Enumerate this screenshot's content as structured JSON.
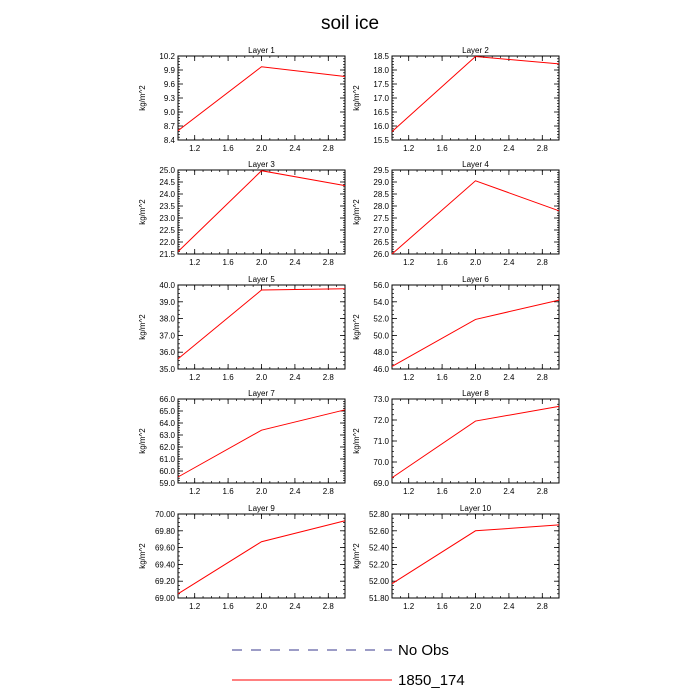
{
  "title": "soil ice",
  "legend": [
    {
      "label": "No Obs",
      "color": "#3a3a8c",
      "dash": true
    },
    {
      "label": "1850_174",
      "color": "#ff0000",
      "dash": false
    }
  ],
  "chart_data": [
    {
      "type": "line",
      "title": "Layer 1",
      "ylabel": "kg/m^2",
      "xlim": [
        1.0,
        3.0
      ],
      "xticks": [
        "1.2",
        "1.6",
        "2.0",
        "2.4",
        "2.8"
      ],
      "ylim": [
        8.4,
        10.2
      ],
      "yticks": [
        "8.4",
        "8.7",
        "9.0",
        "9.3",
        "9.6",
        "9.9",
        "10.2"
      ],
      "series": [
        {
          "color": "#ff0000",
          "x": [
            1,
            2,
            3
          ],
          "y": [
            8.6,
            9.97,
            9.76
          ]
        }
      ]
    },
    {
      "type": "line",
      "title": "Layer 2",
      "ylabel": "kg/m^2",
      "xlim": [
        1.0,
        3.0
      ],
      "xticks": [
        "1.2",
        "1.6",
        "2.0",
        "2.4",
        "2.8"
      ],
      "ylim": [
        15.5,
        18.5
      ],
      "yticks": [
        "15.5",
        "16.0",
        "16.5",
        "17.0",
        "17.5",
        "18.0",
        "18.5"
      ],
      "series": [
        {
          "color": "#ff0000",
          "x": [
            1,
            2,
            3
          ],
          "y": [
            15.8,
            18.48,
            18.22
          ]
        }
      ]
    },
    {
      "type": "line",
      "title": "Layer 3",
      "ylabel": "kg/m^2",
      "xlim": [
        1.0,
        3.0
      ],
      "xticks": [
        "1.2",
        "1.6",
        "2.0",
        "2.4",
        "2.8"
      ],
      "ylim": [
        21.5,
        25.0
      ],
      "yticks": [
        "21.5",
        "22.0",
        "22.5",
        "23.0",
        "23.5",
        "24.0",
        "24.5",
        "25.0"
      ],
      "series": [
        {
          "color": "#ff0000",
          "x": [
            1,
            2,
            3
          ],
          "y": [
            21.6,
            24.97,
            24.35
          ]
        }
      ]
    },
    {
      "type": "line",
      "title": "Layer 4",
      "ylabel": "kg/m^2",
      "xlim": [
        1.0,
        3.0
      ],
      "xticks": [
        "1.2",
        "1.6",
        "2.0",
        "2.4",
        "2.8"
      ],
      "ylim": [
        26.0,
        29.5
      ],
      "yticks": [
        "26.0",
        "26.5",
        "27.0",
        "27.5",
        "28.0",
        "28.5",
        "29.0",
        "29.5"
      ],
      "series": [
        {
          "color": "#ff0000",
          "x": [
            1,
            2,
            3
          ],
          "y": [
            26.0,
            29.05,
            27.8
          ]
        }
      ]
    },
    {
      "type": "line",
      "title": "Layer 5",
      "ylabel": "kg/m^2",
      "xlim": [
        1.0,
        3.0
      ],
      "xticks": [
        "1.2",
        "1.6",
        "2.0",
        "2.4",
        "2.8"
      ],
      "ylim": [
        35.0,
        40.0
      ],
      "yticks": [
        "35.0",
        "36.0",
        "37.0",
        "38.0",
        "39.0",
        "40.0"
      ],
      "series": [
        {
          "color": "#ff0000",
          "x": [
            1,
            2,
            3
          ],
          "y": [
            35.6,
            39.7,
            39.78
          ]
        }
      ]
    },
    {
      "type": "line",
      "title": "Layer 6",
      "ylabel": "kg/m^2",
      "xlim": [
        1.0,
        3.0
      ],
      "xticks": [
        "1.2",
        "1.6",
        "2.0",
        "2.4",
        "2.8"
      ],
      "ylim": [
        46.0,
        56.0
      ],
      "yticks": [
        "46.0",
        "48.0",
        "50.0",
        "52.0",
        "54.0",
        "56.0"
      ],
      "series": [
        {
          "color": "#ff0000",
          "x": [
            1,
            2,
            3
          ],
          "y": [
            46.3,
            51.9,
            54.2
          ]
        }
      ]
    },
    {
      "type": "line",
      "title": "Layer 7",
      "ylabel": "kg/m^2",
      "xlim": [
        1.0,
        3.0
      ],
      "xticks": [
        "1.2",
        "1.6",
        "2.0",
        "2.4",
        "2.8"
      ],
      "ylim": [
        59.0,
        66.0
      ],
      "yticks": [
        "59.0",
        "60.0",
        "61.0",
        "62.0",
        "63.0",
        "64.0",
        "65.0",
        "66.0"
      ],
      "series": [
        {
          "color": "#ff0000",
          "x": [
            1,
            2,
            3
          ],
          "y": [
            59.5,
            63.4,
            65.1
          ]
        }
      ]
    },
    {
      "type": "line",
      "title": "Layer 8",
      "ylabel": "kg/m^2",
      "xlim": [
        1.0,
        3.0
      ],
      "xticks": [
        "1.2",
        "1.6",
        "2.0",
        "2.4",
        "2.8"
      ],
      "ylim": [
        69.0,
        73.0
      ],
      "yticks": [
        "69.0",
        "70.0",
        "71.0",
        "72.0",
        "73.0"
      ],
      "series": [
        {
          "color": "#ff0000",
          "x": [
            1,
            2,
            3
          ],
          "y": [
            69.25,
            71.95,
            72.65
          ]
        }
      ]
    },
    {
      "type": "line",
      "title": "Layer 9",
      "ylabel": "kg/m^2",
      "xlim": [
        1.0,
        3.0
      ],
      "xticks": [
        "1.2",
        "1.6",
        "2.0",
        "2.4",
        "2.8"
      ],
      "ylim": [
        69.0,
        70.0
      ],
      "yticks": [
        "69.00",
        "69.20",
        "69.40",
        "69.60",
        "69.80",
        "70.00"
      ],
      "series": [
        {
          "color": "#ff0000",
          "x": [
            1,
            2,
            3
          ],
          "y": [
            69.05,
            69.67,
            69.92
          ]
        }
      ]
    },
    {
      "type": "line",
      "title": "Layer 10",
      "ylabel": "kg/m^2",
      "xlim": [
        1.0,
        3.0
      ],
      "xticks": [
        "1.2",
        "1.6",
        "2.0",
        "2.4",
        "2.8"
      ],
      "ylim": [
        51.8,
        52.8
      ],
      "yticks": [
        "51.80",
        "52.00",
        "52.20",
        "52.40",
        "52.60",
        "52.80"
      ],
      "series": [
        {
          "color": "#ff0000",
          "x": [
            1,
            2,
            3
          ],
          "y": [
            51.97,
            52.6,
            52.67
          ]
        }
      ]
    }
  ]
}
